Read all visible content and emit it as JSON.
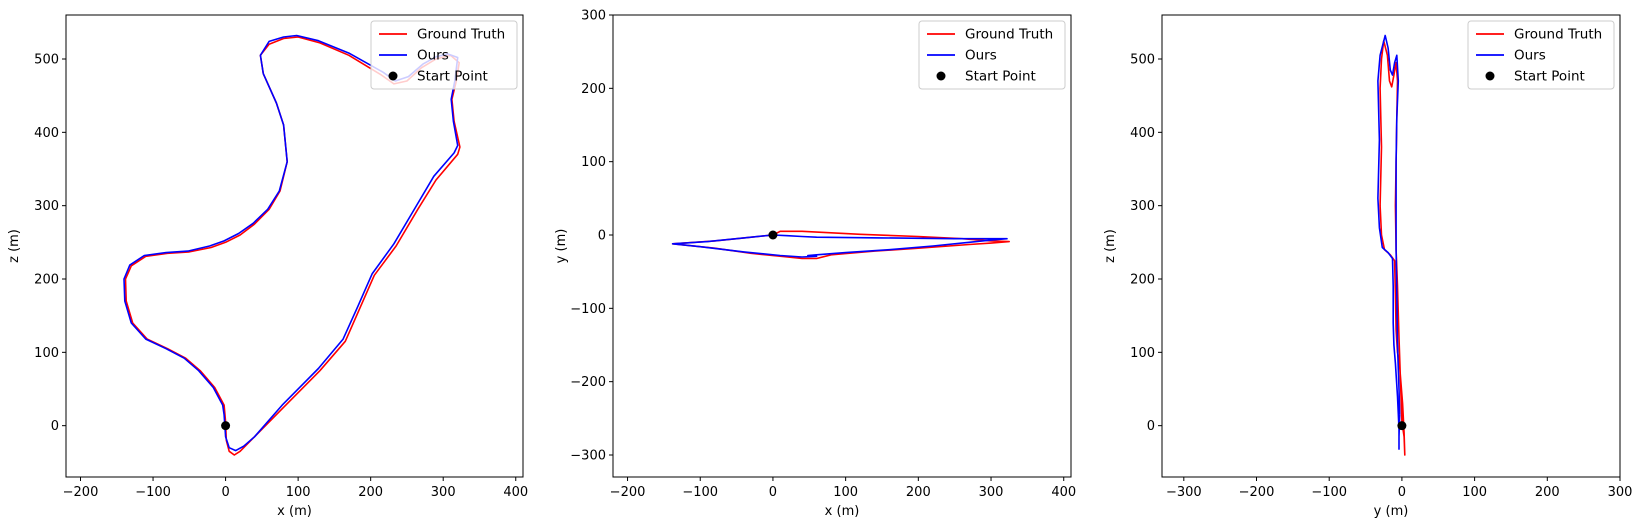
{
  "chart_data": [
    {
      "type": "line",
      "title": "",
      "xlabel": "x (m)",
      "ylabel": "z (m)",
      "xlim": [
        -220,
        410
      ],
      "ylim": [
        -70,
        560
      ],
      "xticks": [
        -200,
        -100,
        0,
        100,
        200,
        300,
        400
      ],
      "yticks": [
        0,
        100,
        200,
        300,
        400,
        500
      ],
      "legend_position": "top-right",
      "grid": false,
      "series": [
        {
          "name": "Ground Truth",
          "color": "#ff0000",
          "points": [
            [
              0,
              5
            ],
            [
              1,
              -20
            ],
            [
              5,
              -35
            ],
            [
              12,
              -40
            ],
            [
              20,
              -35
            ],
            [
              40,
              -15
            ],
            [
              80,
              25
            ],
            [
              130,
              75
            ],
            [
              165,
              115
            ],
            [
              185,
              160
            ],
            [
              205,
              205
            ],
            [
              235,
              245
            ],
            [
              265,
              295
            ],
            [
              290,
              335
            ],
            [
              320,
              370
            ],
            [
              323,
              380
            ],
            [
              315,
              415
            ],
            [
              312,
              445
            ],
            [
              318,
              470
            ],
            [
              322,
              495
            ],
            [
              310,
              505
            ],
            [
              290,
              500
            ],
            [
              270,
              488
            ],
            [
              250,
              470
            ],
            [
              232,
              466
            ],
            [
              215,
              478
            ],
            [
              170,
              505
            ],
            [
              130,
              522
            ],
            [
              100,
              530
            ],
            [
              80,
              528
            ],
            [
              60,
              520
            ],
            [
              48,
              505
            ],
            [
              52,
              480
            ],
            [
              70,
              440
            ],
            [
              80,
              410
            ],
            [
              85,
              360
            ],
            [
              75,
              320
            ],
            [
              60,
              295
            ],
            [
              40,
              275
            ],
            [
              20,
              260
            ],
            [
              0,
              250
            ],
            [
              -20,
              243
            ],
            [
              -50,
              237
            ],
            [
              -80,
              235
            ],
            [
              -110,
              231
            ],
            [
              -130,
              218
            ],
            [
              -138,
              200
            ],
            [
              -137,
              170
            ],
            [
              -128,
              140
            ],
            [
              -108,
              118
            ],
            [
              -80,
              105
            ],
            [
              -55,
              92
            ],
            [
              -35,
              75
            ],
            [
              -15,
              52
            ],
            [
              -2,
              28
            ],
            [
              0,
              5
            ]
          ]
        },
        {
          "name": "Ours",
          "color": "#0000ff",
          "points": [
            [
              -2,
              15
            ],
            [
              0,
              -15
            ],
            [
              5,
              -30
            ],
            [
              14,
              -34
            ],
            [
              25,
              -28
            ],
            [
              40,
              -15
            ],
            [
              78,
              28
            ],
            [
              128,
              78
            ],
            [
              162,
              118
            ],
            [
              182,
              162
            ],
            [
              202,
              207
            ],
            [
              232,
              248
            ],
            [
              262,
              298
            ],
            [
              287,
              340
            ],
            [
              315,
              372
            ],
            [
              320,
              382
            ],
            [
              314,
              415
            ],
            [
              311,
              445
            ],
            [
              316,
              470
            ],
            [
              320,
              502
            ],
            [
              306,
              507
            ],
            [
              290,
              503
            ],
            [
              272,
              493
            ],
            [
              252,
              476
            ],
            [
              234,
              470
            ],
            [
              217,
              482
            ],
            [
              170,
              508
            ],
            [
              128,
              525
            ],
            [
              98,
              532
            ],
            [
              80,
              530
            ],
            [
              60,
              524
            ],
            [
              48,
              505
            ],
            [
              52,
              480
            ],
            [
              70,
              440
            ],
            [
              80,
              410
            ],
            [
              85,
              360
            ],
            [
              74,
              320
            ],
            [
              58,
              295
            ],
            [
              38,
              276
            ],
            [
              18,
              262
            ],
            [
              -2,
              252
            ],
            [
              -22,
              245
            ],
            [
              -52,
              238
            ],
            [
              -82,
              236
            ],
            [
              -112,
              232
            ],
            [
              -132,
              219
            ],
            [
              -140,
              200
            ],
            [
              -139,
              170
            ],
            [
              -130,
              140
            ],
            [
              -110,
              118
            ],
            [
              -82,
              105
            ],
            [
              -57,
              92
            ],
            [
              -37,
              75
            ],
            [
              -17,
              52
            ],
            [
              -4,
              28
            ],
            [
              -2,
              15
            ]
          ]
        }
      ],
      "start_point": {
        "name": "Start Point",
        "x": 0,
        "y": 0,
        "color": "#000000"
      }
    },
    {
      "type": "line",
      "title": "",
      "xlabel": "x (m)",
      "ylabel": "y (m)",
      "xlim": [
        -220,
        410
      ],
      "ylim": [
        -330,
        300
      ],
      "xticks": [
        -200,
        -100,
        0,
        100,
        200,
        300,
        400
      ],
      "yticks": [
        -300,
        -200,
        -100,
        0,
        100,
        200,
        300
      ],
      "legend_position": "top-right",
      "grid": false,
      "series": [
        {
          "name": "Ground Truth",
          "color": "#ff0000",
          "points": [
            [
              0,
              0
            ],
            [
              10,
              5
            ],
            [
              40,
              5
            ],
            [
              60,
              4
            ],
            [
              120,
              1
            ],
            [
              200,
              -2
            ],
            [
              260,
              -5
            ],
            [
              300,
              -8
            ],
            [
              325,
              -9
            ],
            [
              300,
              -11
            ],
            [
              270,
              -13
            ],
            [
              200,
              -18
            ],
            [
              140,
              -22
            ],
            [
              80,
              -27
            ],
            [
              60,
              -32
            ],
            [
              40,
              -32
            ],
            [
              20,
              -30
            ],
            [
              -30,
              -25
            ],
            [
              -80,
              -18
            ],
            [
              -138,
              -12
            ],
            [
              -80,
              -8
            ],
            [
              -30,
              -3
            ],
            [
              0,
              0
            ]
          ]
        },
        {
          "name": "Ours",
          "color": "#0000ff",
          "points": [
            [
              0,
              0
            ],
            [
              20,
              -1
            ],
            [
              40,
              -2
            ],
            [
              60,
              -3
            ],
            [
              150,
              -4
            ],
            [
              250,
              -5
            ],
            [
              322,
              -5
            ],
            [
              300,
              -7
            ],
            [
              270,
              -10
            ],
            [
              220,
              -15
            ],
            [
              160,
              -20
            ],
            [
              100,
              -24
            ],
            [
              60,
              -27
            ],
            [
              48,
              -28
            ],
            [
              60,
              -29
            ],
            [
              40,
              -30
            ],
            [
              10,
              -28
            ],
            [
              -40,
              -23
            ],
            [
              -100,
              -16
            ],
            [
              -138,
              -12
            ],
            [
              -90,
              -9
            ],
            [
              -40,
              -4
            ],
            [
              0,
              0
            ]
          ]
        }
      ],
      "start_point": {
        "name": "Start Point",
        "x": 0,
        "y": 0,
        "color": "#000000"
      }
    },
    {
      "type": "line",
      "title": "",
      "xlabel": "y (m)",
      "ylabel": "z (m)",
      "xlim": [
        -330,
        300
      ],
      "ylim": [
        -70,
        560
      ],
      "xticks": [
        -300,
        -200,
        -100,
        0,
        100,
        200,
        300
      ],
      "yticks": [
        0,
        100,
        200,
        300,
        400,
        500
      ],
      "legend_position": "top-right",
      "grid": false,
      "series": [
        {
          "name": "Ground Truth",
          "color": "#ff0000",
          "points": [
            [
              0,
              5
            ],
            [
              3,
              -15
            ],
            [
              4,
              -40
            ],
            [
              3,
              -10
            ],
            [
              1,
              30
            ],
            [
              -3,
              80
            ],
            [
              -6,
              100
            ],
            [
              -8,
              130
            ],
            [
              -9,
              180
            ],
            [
              -10,
              225
            ],
            [
              -16,
              233
            ],
            [
              -24,
              240
            ],
            [
              -28,
              260
            ],
            [
              -30,
              300
            ],
            [
              -28,
              380
            ],
            [
              -30,
              460
            ],
            [
              -28,
              500
            ],
            [
              -25,
              525
            ],
            [
              -20,
              505
            ],
            [
              -17,
              470
            ],
            [
              -14,
              462
            ],
            [
              -11,
              478
            ],
            [
              -8,
              495
            ],
            [
              -6,
              470
            ],
            [
              -7,
              420
            ],
            [
              -8,
              360
            ],
            [
              -9,
              300
            ],
            [
              -8,
              240
            ],
            [
              -6,
              190
            ],
            [
              -4,
              120
            ],
            [
              -2,
              60
            ],
            [
              0,
              5
            ]
          ]
        },
        {
          "name": "Ours",
          "color": "#0000ff",
          "points": [
            [
              -3,
              15
            ],
            [
              -4,
              -15
            ],
            [
              -4,
              -32
            ],
            [
              -4,
              -5
            ],
            [
              -6,
              40
            ],
            [
              -9,
              85
            ],
            [
              -11,
              110
            ],
            [
              -12,
              140
            ],
            [
              -12,
              190
            ],
            [
              -13,
              228
            ],
            [
              -19,
              236
            ],
            [
              -27,
              243
            ],
            [
              -31,
              270
            ],
            [
              -33,
              310
            ],
            [
              -31,
              390
            ],
            [
              -33,
              470
            ],
            [
              -30,
              505
            ],
            [
              -23,
              532
            ],
            [
              -19,
              515
            ],
            [
              -16,
              485
            ],
            [
              -13,
              478
            ],
            [
              -10,
              495
            ],
            [
              -7,
              505
            ],
            [
              -5,
              470
            ],
            [
              -7,
              420
            ],
            [
              -8,
              360
            ],
            [
              -8,
              300
            ],
            [
              -8,
              240
            ],
            [
              -7,
              180
            ],
            [
              -6,
              110
            ],
            [
              -4,
              50
            ],
            [
              -3,
              15
            ]
          ]
        }
      ],
      "start_point": {
        "name": "Start Point",
        "x": 0,
        "y": 0,
        "color": "#000000"
      }
    }
  ]
}
